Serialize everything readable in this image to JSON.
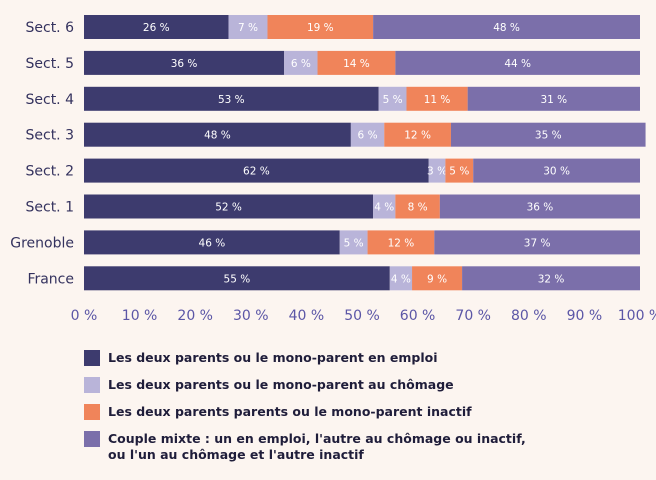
{
  "chart_data": {
    "type": "stacked-bar",
    "orientation": "horizontal",
    "categories": [
      "Sect. 6",
      "Sect. 5",
      "Sect. 4",
      "Sect. 3",
      "Sect. 2",
      "Sect. 1",
      "Grenoble",
      "France"
    ],
    "series": [
      {
        "name": "Les deux parents ou le mono-parent en emploi",
        "color": "#3d3b6e",
        "values": [
          26,
          36,
          53,
          48,
          62,
          52,
          46,
          55
        ],
        "value_labels": [
          "26 %",
          "36 %",
          "53 %",
          "48 %",
          "62 %",
          "52 %",
          "46 %",
          "55 %"
        ]
      },
      {
        "name": "Les deux parents ou le mono-parent au chômage",
        "color": "#b9b4d9",
        "values": [
          7,
          6,
          5,
          6,
          3,
          4,
          5,
          4
        ],
        "value_labels": [
          "7 %",
          "6 %",
          "5 %",
          "6 %",
          "3 %",
          "4 %",
          "5 %",
          "4 %"
        ]
      },
      {
        "name": "Les deux parents parents ou le mono-parent inactif",
        "color": "#f0845a",
        "values": [
          19,
          14,
          11,
          12,
          5,
          8,
          12,
          9
        ],
        "value_labels": [
          "19 %",
          "14 %",
          "11 %",
          "12 %",
          "5 %",
          "8 %",
          "12 %",
          "9 %"
        ]
      },
      {
        "name": "Couple mixte : un en emploi, l'autre au chômage ou inactif, ou l'un au chômage et l'autre inactif",
        "color": "#7b6faa",
        "values": [
          48,
          44,
          31,
          35,
          30,
          36,
          37,
          32
        ],
        "value_labels": [
          "48 %",
          "44 %",
          "31 %",
          "35 %",
          "30 %",
          "36 %",
          "37 %",
          "32 %"
        ]
      }
    ],
    "xlim": [
      0,
      100
    ],
    "xticks": [
      {
        "value": 0,
        "label": "0 %"
      },
      {
        "value": 10,
        "label": "10 %"
      },
      {
        "value": 20,
        "label": "20 %"
      },
      {
        "value": 30,
        "label": "30 %"
      },
      {
        "value": 40,
        "label": "40 %"
      },
      {
        "value": 50,
        "label": "50 %"
      },
      {
        "value": 60,
        "label": "60 %"
      },
      {
        "value": 70,
        "label": "70 %"
      },
      {
        "value": 80,
        "label": "80 %"
      },
      {
        "value": 90,
        "label": "90 %"
      },
      {
        "value": 100,
        "label": "100 %"
      }
    ]
  }
}
